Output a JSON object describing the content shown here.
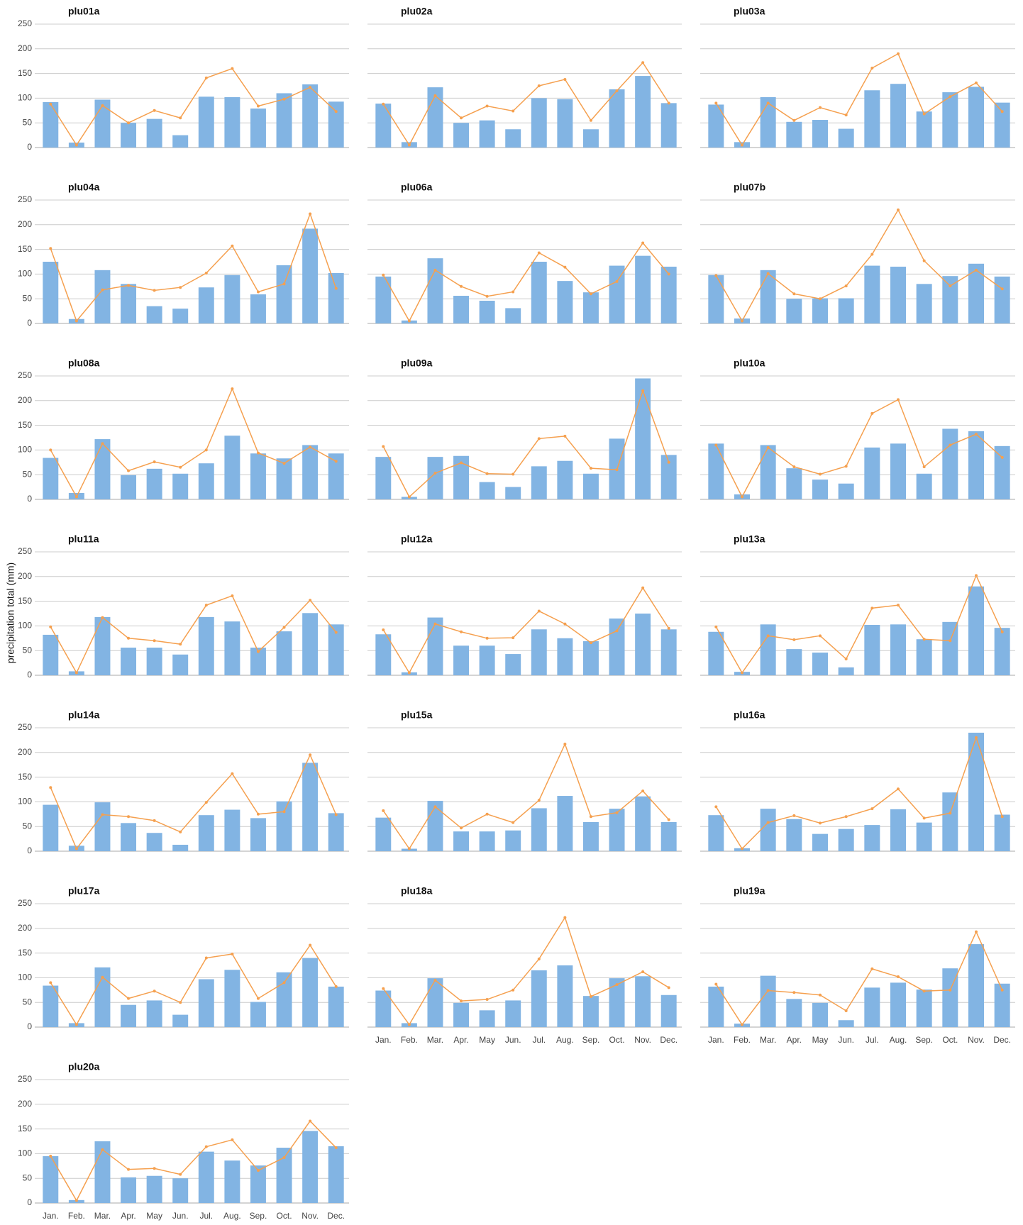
{
  "chart_data": {
    "type": "bar",
    "y_label": "precipitation total (mm)",
    "categories": [
      "Jan.",
      "Feb.",
      "Mar.",
      "Apr.",
      "May",
      "Jun.",
      "Jul.",
      "Aug.",
      "Sep.",
      "Oct.",
      "Nov.",
      "Dec."
    ],
    "ylim": [
      0,
      250
    ],
    "yticks": [
      0,
      50,
      100,
      150,
      200,
      250
    ],
    "grid": true,
    "bar_color": "#82b4e3",
    "line_color": "#f5a04f",
    "panels": [
      {
        "title": "plu01a",
        "bars": [
          92,
          10,
          97,
          50,
          58,
          25,
          103,
          102,
          79,
          110,
          128,
          93
        ],
        "line": [
          88,
          5,
          85,
          50,
          75,
          60,
          141,
          160,
          84,
          98,
          122,
          73
        ]
      },
      {
        "title": "plu02a",
        "bars": [
          89,
          11,
          122,
          50,
          55,
          37,
          100,
          98,
          37,
          118,
          145,
          90
        ],
        "line": [
          88,
          5,
          105,
          60,
          84,
          74,
          125,
          138,
          55,
          115,
          172,
          90
        ]
      },
      {
        "title": "plu03a",
        "bars": [
          87,
          11,
          102,
          52,
          56,
          38,
          116,
          129,
          73,
          112,
          123,
          91
        ],
        "line": [
          90,
          5,
          90,
          55,
          81,
          66,
          161,
          190,
          68,
          103,
          131,
          73
        ]
      },
      {
        "title": "plu04a",
        "bars": [
          125,
          9,
          108,
          80,
          35,
          30,
          73,
          98,
          59,
          118,
          192,
          102
        ],
        "line": [
          152,
          5,
          68,
          77,
          67,
          73,
          102,
          157,
          64,
          80,
          222,
          71
        ]
      },
      {
        "title": "plu06a",
        "bars": [
          95,
          6,
          132,
          56,
          46,
          31,
          125,
          86,
          63,
          117,
          137,
          115
        ],
        "line": [
          98,
          5,
          108,
          75,
          55,
          64,
          143,
          114,
          60,
          85,
          163,
          100
        ]
      },
      {
        "title": "plu07b",
        "bars": [
          98,
          10,
          108,
          50,
          51,
          51,
          117,
          115,
          80,
          96,
          121,
          95
        ],
        "line": [
          97,
          5,
          101,
          60,
          50,
          76,
          140,
          230,
          127,
          76,
          108,
          70
        ]
      },
      {
        "title": "plu08a",
        "bars": [
          84,
          13,
          122,
          49,
          62,
          52,
          73,
          129,
          93,
          83,
          110,
          93
        ],
        "line": [
          100,
          5,
          113,
          58,
          76,
          65,
          100,
          224,
          94,
          73,
          106,
          77
        ]
      },
      {
        "title": "plu09a",
        "bars": [
          86,
          5,
          86,
          88,
          35,
          25,
          67,
          78,
          52,
          123,
          245,
          90
        ],
        "line": [
          107,
          5,
          53,
          74,
          52,
          51,
          123,
          128,
          63,
          60,
          220,
          75
        ]
      },
      {
        "title": "plu10a",
        "bars": [
          113,
          10,
          110,
          63,
          40,
          32,
          105,
          113,
          52,
          143,
          138,
          108
        ],
        "line": [
          110,
          5,
          105,
          66,
          51,
          67,
          174,
          202,
          66,
          110,
          132,
          85
        ]
      },
      {
        "title": "plu11a",
        "bars": [
          82,
          8,
          118,
          56,
          56,
          42,
          118,
          109,
          56,
          89,
          126,
          103
        ],
        "line": [
          98,
          5,
          117,
          75,
          70,
          63,
          142,
          161,
          48,
          97,
          152,
          87
        ]
      },
      {
        "title": "plu12a",
        "bars": [
          83,
          6,
          117,
          60,
          60,
          43,
          93,
          75,
          69,
          115,
          125,
          93
        ],
        "line": [
          92,
          5,
          104,
          88,
          75,
          76,
          130,
          104,
          66,
          90,
          177,
          95
        ]
      },
      {
        "title": "plu13a",
        "bars": [
          88,
          7,
          103,
          53,
          46,
          16,
          102,
          103,
          73,
          108,
          180,
          96
        ],
        "line": [
          98,
          5,
          80,
          72,
          80,
          33,
          136,
          142,
          73,
          70,
          202,
          88
        ]
      },
      {
        "title": "plu14a",
        "bars": [
          94,
          11,
          99,
          57,
          37,
          13,
          73,
          84,
          67,
          101,
          179,
          77
        ],
        "line": [
          129,
          5,
          74,
          70,
          62,
          39,
          99,
          157,
          75,
          80,
          195,
          74
        ]
      },
      {
        "title": "plu15a",
        "bars": [
          68,
          5,
          102,
          40,
          40,
          42,
          87,
          112,
          59,
          86,
          111,
          59
        ],
        "line": [
          82,
          5,
          90,
          47,
          75,
          58,
          103,
          217,
          70,
          78,
          122,
          64
        ]
      },
      {
        "title": "plu16a",
        "bars": [
          73,
          6,
          86,
          65,
          35,
          45,
          53,
          85,
          58,
          119,
          240,
          74
        ],
        "line": [
          90,
          5,
          58,
          72,
          57,
          70,
          86,
          126,
          67,
          77,
          230,
          70
        ]
      },
      {
        "title": "plu17a",
        "bars": [
          84,
          8,
          121,
          45,
          54,
          25,
          97,
          116,
          51,
          111,
          140,
          82
        ],
        "line": [
          90,
          5,
          101,
          58,
          73,
          50,
          140,
          148,
          58,
          90,
          166,
          82
        ]
      },
      {
        "title": "plu18a",
        "bars": [
          74,
          8,
          99,
          49,
          34,
          54,
          115,
          125,
          63,
          99,
          103,
          65
        ],
        "line": [
          78,
          5,
          95,
          53,
          56,
          75,
          138,
          222,
          62,
          86,
          112,
          80
        ]
      },
      {
        "title": "plu19a",
        "bars": [
          82,
          7,
          104,
          57,
          49,
          14,
          80,
          90,
          76,
          119,
          168,
          88
        ],
        "line": [
          87,
          5,
          74,
          70,
          65,
          33,
          118,
          102,
          73,
          75,
          193,
          75
        ]
      },
      {
        "title": "plu20a",
        "bars": [
          95,
          6,
          125,
          52,
          55,
          50,
          104,
          86,
          76,
          112,
          146,
          115
        ],
        "line": [
          95,
          5,
          108,
          68,
          70,
          58,
          114,
          128,
          66,
          92,
          166,
          112
        ]
      }
    ]
  }
}
